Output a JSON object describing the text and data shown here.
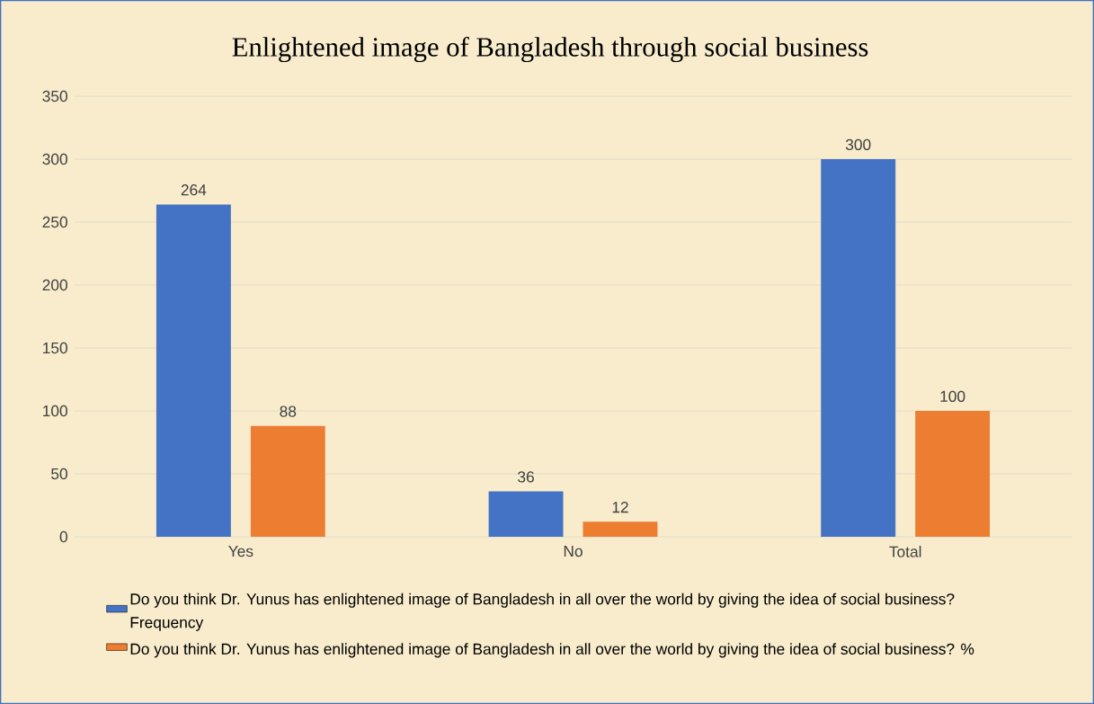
{
  "chart_data": {
    "type": "bar",
    "title": "Enlightened image of Bangladesh through social business",
    "categories": [
      "Yes",
      "No",
      "Total"
    ],
    "series": [
      {
        "name": "Do you think Dr. Yunus has enlightened image of Bangladesh in all over the world by giving the idea of social business? Frequency",
        "color": "#4472c4",
        "values": [
          264,
          36,
          300
        ]
      },
      {
        "name": "Do you think Dr. Yunus has enlightened image of Bangladesh in all over the world by giving the idea of social business? %",
        "color": "#ed7d31",
        "values": [
          88,
          12,
          100
        ]
      }
    ],
    "ylim": [
      0,
      350
    ],
    "yticks": [
      0,
      50,
      100,
      150,
      200,
      250,
      300,
      350
    ],
    "grid": "y",
    "legend": "bottom",
    "data_labels": true
  }
}
